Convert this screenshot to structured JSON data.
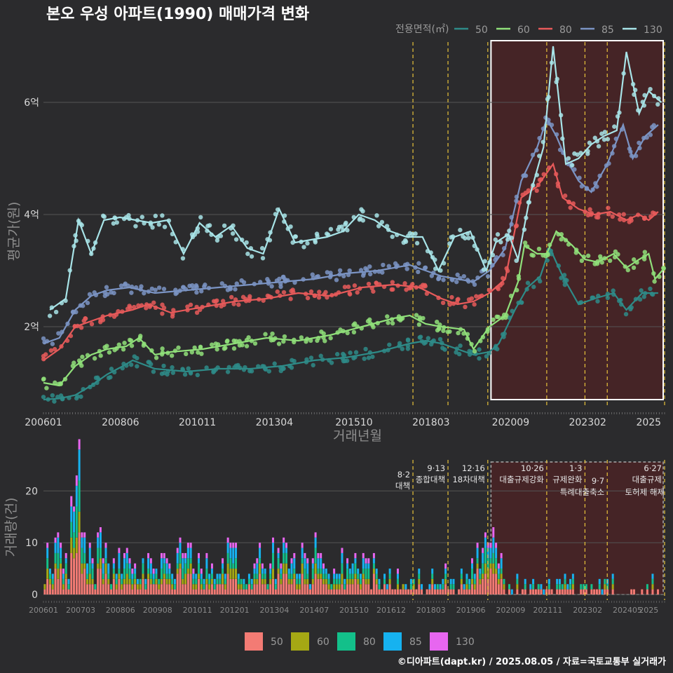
{
  "title": "본오 우성 아파트(1990) 매매가격 변화",
  "footer": "©디아파트(dapt.kr) / 2025.08.05 / 자료=국토교통부 실거래가",
  "colors": {
    "background": "#2b2b2d",
    "grid": "#555555",
    "highlight_fill": "#4a2326",
    "policy_line": "#e8c23a"
  },
  "chart_data": [
    {
      "type": "line",
      "title": "본오 우성 아파트(1990) 매매가격 변화",
      "xlabel": "거래년월",
      "ylabel": "평균가(원)",
      "x_tick_labels": [
        "200601",
        "200806",
        "201011",
        "201304",
        "201510",
        "201803",
        "202009",
        "202302",
        "2025"
      ],
      "y_tick_labels": [
        "2억",
        "4억",
        "6억"
      ],
      "y_ticks": [
        2,
        4,
        6
      ],
      "ylim": [
        0.6,
        7.3
      ],
      "legend_title": "전용면적(㎡)",
      "legend_position": "top-right",
      "series": [
        {
          "name": "50",
          "color": "#2e8b88",
          "points": [
            [
              2006.0,
              0.7
            ],
            [
              2006.5,
              0.72
            ],
            [
              2007.0,
              0.78
            ],
            [
              2007.5,
              0.95
            ],
            [
              2008.0,
              1.15
            ],
            [
              2008.5,
              1.3
            ],
            [
              2008.8,
              1.4
            ],
            [
              2009.5,
              1.25
            ],
            [
              2010.5,
              1.2
            ],
            [
              2011.5,
              1.25
            ],
            [
              2012.5,
              1.25
            ],
            [
              2013.5,
              1.3
            ],
            [
              2014.5,
              1.4
            ],
            [
              2015.5,
              1.45
            ],
            [
              2016.5,
              1.55
            ],
            [
              2017.5,
              1.7
            ],
            [
              2018.0,
              1.75
            ],
            [
              2018.5,
              1.7
            ],
            [
              2019.0,
              1.6
            ],
            [
              2019.5,
              1.5
            ],
            [
              2020.0,
              1.55
            ],
            [
              2020.3,
              1.7
            ],
            [
              2020.8,
              2.3
            ],
            [
              2021.2,
              2.7
            ],
            [
              2021.6,
              2.9
            ],
            [
              2021.9,
              3.4
            ],
            [
              2022.3,
              2.9
            ],
            [
              2022.8,
              2.4
            ],
            [
              2023.3,
              2.5
            ],
            [
              2023.9,
              2.6
            ],
            [
              2024.3,
              2.3
            ],
            [
              2024.8,
              2.6
            ],
            [
              2025.3,
              2.6
            ]
          ]
        },
        {
          "name": "60",
          "color": "#90e07a",
          "points": [
            [
              2006.0,
              1.0
            ],
            [
              2006.5,
              0.95
            ],
            [
              2007.0,
              1.3
            ],
            [
              2007.5,
              1.5
            ],
            [
              2008.0,
              1.6
            ],
            [
              2008.6,
              1.65
            ],
            [
              2009.0,
              1.8
            ],
            [
              2009.5,
              1.5
            ],
            [
              2010.0,
              1.55
            ],
            [
              2011.0,
              1.6
            ],
            [
              2012.0,
              1.7
            ],
            [
              2013.0,
              1.8
            ],
            [
              2014.0,
              1.75
            ],
            [
              2015.0,
              1.85
            ],
            [
              2016.0,
              2.0
            ],
            [
              2017.0,
              2.15
            ],
            [
              2017.5,
              2.2
            ],
            [
              2018.0,
              2.05
            ],
            [
              2018.5,
              2.0
            ],
            [
              2019.2,
              1.95
            ],
            [
              2019.5,
              1.6
            ],
            [
              2020.0,
              2.0
            ],
            [
              2020.5,
              2.2
            ],
            [
              2020.9,
              2.8
            ],
            [
              2021.1,
              3.45
            ],
            [
              2021.5,
              3.3
            ],
            [
              2021.8,
              3.3
            ],
            [
              2022.1,
              3.7
            ],
            [
              2022.6,
              3.45
            ],
            [
              2023.0,
              3.2
            ],
            [
              2023.4,
              3.15
            ],
            [
              2023.9,
              3.3
            ],
            [
              2024.3,
              3.05
            ],
            [
              2024.7,
              3.2
            ],
            [
              2025.0,
              3.3
            ],
            [
              2025.2,
              2.85
            ],
            [
              2025.5,
              3.05
            ]
          ]
        },
        {
          "name": "80",
          "color": "#e85a5a",
          "points": [
            [
              2006.0,
              1.4
            ],
            [
              2006.5,
              1.6
            ],
            [
              2007.0,
              2.0
            ],
            [
              2007.5,
              2.1
            ],
            [
              2008.0,
              2.2
            ],
            [
              2008.8,
              2.3
            ],
            [
              2009.3,
              2.4
            ],
            [
              2010.0,
              2.25
            ],
            [
              2011.0,
              2.35
            ],
            [
              2012.0,
              2.45
            ],
            [
              2013.0,
              2.5
            ],
            [
              2014.0,
              2.6
            ],
            [
              2015.0,
              2.55
            ],
            [
              2016.0,
              2.7
            ],
            [
              2017.0,
              2.75
            ],
            [
              2017.8,
              2.7
            ],
            [
              2018.5,
              2.5
            ],
            [
              2019.0,
              2.4
            ],
            [
              2019.5,
              2.45
            ],
            [
              2020.0,
              2.6
            ],
            [
              2020.5,
              2.85
            ],
            [
              2021.0,
              4.3
            ],
            [
              2021.5,
              4.5
            ],
            [
              2022.0,
              4.9
            ],
            [
              2022.3,
              4.3
            ],
            [
              2022.8,
              4.1
            ],
            [
              2023.3,
              4.0
            ],
            [
              2023.8,
              4.05
            ],
            [
              2024.3,
              3.9
            ],
            [
              2024.7,
              4.0
            ],
            [
              2025.0,
              3.9
            ],
            [
              2025.3,
              4.05
            ]
          ]
        },
        {
          "name": "85",
          "color": "#7b94c4",
          "points": [
            [
              2006.0,
              1.7
            ],
            [
              2006.5,
              1.8
            ],
            [
              2007.0,
              2.3
            ],
            [
              2007.5,
              2.55
            ],
            [
              2008.0,
              2.65
            ],
            [
              2008.7,
              2.7
            ],
            [
              2009.5,
              2.6
            ],
            [
              2010.5,
              2.65
            ],
            [
              2011.5,
              2.7
            ],
            [
              2012.5,
              2.75
            ],
            [
              2013.5,
              2.8
            ],
            [
              2014.5,
              2.85
            ],
            [
              2015.5,
              2.95
            ],
            [
              2016.5,
              3.0
            ],
            [
              2017.5,
              3.1
            ],
            [
              2018.0,
              3.0
            ],
            [
              2018.5,
              2.9
            ],
            [
              2019.0,
              2.85
            ],
            [
              2019.5,
              2.8
            ],
            [
              2020.0,
              3.0
            ],
            [
              2020.5,
              3.4
            ],
            [
              2021.0,
              4.6
            ],
            [
              2021.5,
              5.2
            ],
            [
              2021.8,
              5.7
            ],
            [
              2022.1,
              5.4
            ],
            [
              2022.4,
              5.0
            ],
            [
              2022.8,
              4.6
            ],
            [
              2023.2,
              4.4
            ],
            [
              2023.7,
              4.9
            ],
            [
              2024.2,
              5.6
            ],
            [
              2024.5,
              5.0
            ],
            [
              2024.9,
              5.4
            ],
            [
              2025.3,
              5.6
            ]
          ]
        },
        {
          "name": "130",
          "color": "#a8e4e8",
          "points": [
            [
              2006.2,
              2.3
            ],
            [
              2006.7,
              2.5
            ],
            [
              2007.1,
              3.9
            ],
            [
              2007.5,
              3.3
            ],
            [
              2007.9,
              3.9
            ],
            [
              2008.4,
              3.95
            ],
            [
              2008.9,
              3.9
            ],
            [
              2009.4,
              3.85
            ],
            [
              2009.9,
              3.9
            ],
            [
              2010.4,
              3.3
            ],
            [
              2010.9,
              3.85
            ],
            [
              2011.4,
              3.6
            ],
            [
              2011.9,
              3.8
            ],
            [
              2012.4,
              3.4
            ],
            [
              2012.9,
              3.3
            ],
            [
              2013.4,
              4.1
            ],
            [
              2013.9,
              3.5
            ],
            [
              2014.4,
              3.55
            ],
            [
              2014.9,
              3.6
            ],
            [
              2015.4,
              3.7
            ],
            [
              2015.9,
              4.0
            ],
            [
              2016.4,
              3.9
            ],
            [
              2016.9,
              3.7
            ],
            [
              2017.4,
              3.6
            ],
            [
              2017.9,
              3.6
            ],
            [
              2018.4,
              3.0
            ],
            [
              2018.9,
              3.6
            ],
            [
              2019.4,
              3.7
            ],
            [
              2019.9,
              3.0
            ],
            [
              2020.2,
              3.5
            ],
            [
              2020.6,
              3.65
            ],
            [
              2020.9,
              3.2
            ],
            [
              2021.3,
              4.4
            ],
            [
              2021.7,
              5.2
            ],
            [
              2022.0,
              7.0
            ],
            [
              2022.4,
              4.9
            ],
            [
              2022.8,
              5.0
            ],
            [
              2023.2,
              5.25
            ],
            [
              2023.6,
              5.4
            ],
            [
              2024.0,
              5.5
            ],
            [
              2024.3,
              6.9
            ],
            [
              2024.7,
              5.8
            ],
            [
              2025.0,
              6.2
            ],
            [
              2025.4,
              6.0
            ]
          ]
        }
      ]
    },
    {
      "type": "bar",
      "ylabel": "거래량(건)",
      "x_tick_labels": [
        "200601",
        "200703",
        "200806",
        "200908",
        "201011",
        "201201",
        "201304",
        "201407",
        "201510",
        "201612",
        "201803",
        "201906",
        "202009",
        "202111",
        "202302",
        "202405",
        "2025"
      ],
      "y_ticks": [
        0,
        10,
        20
      ],
      "y_tick_labels": [
        "0",
        "10",
        "20"
      ],
      "ylim": [
        0,
        26
      ],
      "stacked": true,
      "legend_position": "bottom",
      "series_names": [
        "50",
        "60",
        "80",
        "85",
        "130"
      ],
      "series_colors": [
        "#f37b74",
        "#a5a814",
        "#13c08a",
        "#16b2f0",
        "#e766f0"
      ],
      "annotations": [
        {
          "date": 2017.6,
          "label": "8·2 대책"
        },
        {
          "date": 2018.7,
          "label": "9·13 종합대책"
        },
        {
          "date": 2019.95,
          "label": "12·16 18차대책"
        },
        {
          "date": 2021.8,
          "label": "10·26 대출규제강화"
        },
        {
          "date": 2023.0,
          "label": "1·3 규제완화"
        },
        {
          "date": 2023.7,
          "label": "9·7 특례대출축소"
        },
        {
          "date": 2025.5,
          "label": "6·27 대출규제"
        }
      ],
      "annotation_notes": [
        "토허제 해제"
      ]
    }
  ]
}
